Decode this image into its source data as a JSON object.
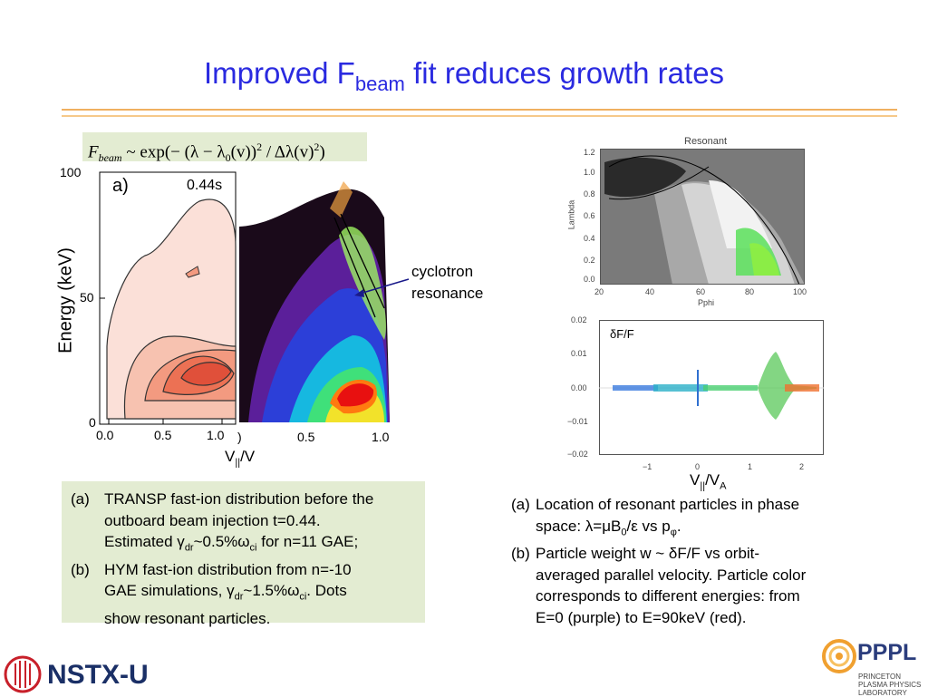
{
  "title": {
    "prefix": "Improved F",
    "sub": "beam",
    "suffix": " fit reduces growth rates"
  },
  "formula": {
    "lhs": "F",
    "lhs_sub": "beam",
    "rhs_a": " ~ exp(− (λ − λ",
    "rhs_sub0": "0",
    "rhs_b": "(v))",
    "rhs_sup1": "2",
    "rhs_c": " / Δλ(v)",
    "rhs_sup2": "2",
    "rhs_d": ")"
  },
  "plot_a": {
    "panel_label": "a)",
    "time_label": "0.44s",
    "ylabel": "Energy (keV)",
    "y_ticks": [
      "100",
      "50",
      "0"
    ],
    "x_ticks": [
      "0.0",
      "0.5",
      "1.0"
    ],
    "x_ticks_b": [
      "0.5",
      "1.0"
    ],
    "xlabel_main": "V",
    "xlabel_sub": "||",
    "xlabel_end": "/V"
  },
  "annotation": {
    "line1": "cyclotron",
    "line2": "resonance"
  },
  "plot_resonant": {
    "title": "Resonant",
    "ylabel": "Lambda",
    "xlabel": "Pphi",
    "y_ticks": [
      "1.2",
      "1.0",
      "0.8",
      "0.6",
      "0.4",
      "0.2",
      "0.0"
    ],
    "x_ticks": [
      "20",
      "40",
      "60",
      "80",
      "100"
    ]
  },
  "plot_dF": {
    "label": "δF/F",
    "y_ticks": [
      "0.02",
      "0.01",
      "0.00",
      "−0.01",
      "−0.02"
    ],
    "x_ticks": [
      "−1",
      "0",
      "1",
      "2"
    ],
    "xlabel_main": "V",
    "xlabel_sub": "||",
    "xlabel_mid": "/V",
    "xlabel_sub2": "A"
  },
  "caption_left": {
    "a_label": "(a)",
    "a_line1": "TRANSP fast-ion distribution before the",
    "a_line2": "outboard beam injection t=0.44.",
    "a_line3_1": "Estimated γ",
    "a_line3_sub1": "dr",
    "a_line3_2": "~0.5%ω",
    "a_line3_sub2": "ci",
    "a_line3_3": " for n=11 GAE;",
    "b_label": "(b)",
    "b_line1": "HYM fast-ion distribution from n=-10",
    "b_line2_1": "GAE simulations, γ",
    "b_line2_sub1": "dr",
    "b_line2_2": "~1.5%ω",
    "b_line2_sub2": "ci",
    "b_line2_3": ". Dots",
    "b_line3": "show resonant particles."
  },
  "caption_right": {
    "a_label": "(a)",
    "a_line1": "Location of resonant particles in phase",
    "a_line2_1": "space: λ=μB",
    "a_line2_sub": "0",
    "a_line2_2": "/ε vs p",
    "a_line2_sub2": "φ",
    "a_line2_3": ".",
    "b_label": "(b)",
    "b_line1": " Particle weight  w ~ δF/F   vs orbit-",
    "b_line2": "averaged parallel velocity. Particle color",
    "b_line3": "corresponds to different energies: from",
    "b_line4": "E=0 (purple) to E=90keV (red)."
  },
  "logos": {
    "nstx": "NSTX-U",
    "pppl": "PPPL",
    "pppl_sub1": "PRINCETON",
    "pppl_sub2": "PLASMA PHYSICS",
    "pppl_sub3": "LABORATORY"
  },
  "colors": {
    "title": "#2a2ae0",
    "rule": "#f0b060",
    "caption_bg": "#e3ecd2"
  }
}
